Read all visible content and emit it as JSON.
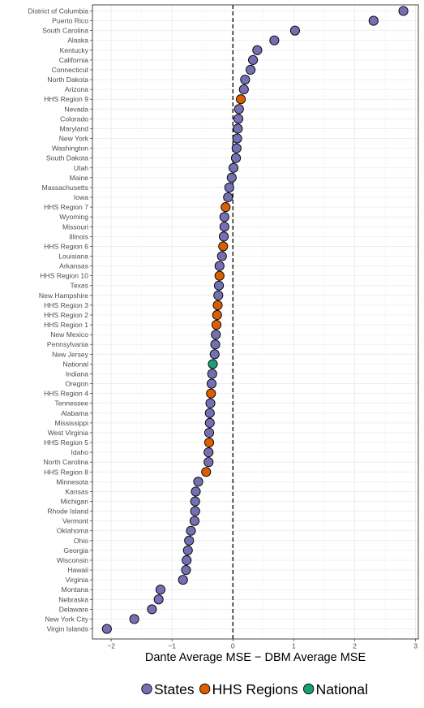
{
  "chart_data": {
    "type": "scatter",
    "title": "",
    "xlabel": "Dante Average MSE − DBM Average MSE",
    "ylabel": "",
    "xlim": [
      -2.2,
      3.05
    ],
    "xticks": [
      -2,
      -1,
      0,
      1,
      2,
      3
    ],
    "xtick_labels": [
      "−2",
      "−1",
      "0",
      "1",
      "2",
      "3"
    ],
    "reference_line": {
      "x": 0,
      "style": "dashed"
    },
    "grid": true,
    "legend_position": "bottom",
    "groups": [
      {
        "name": "States",
        "color": "#7570b3"
      },
      {
        "name": "HHS Regions",
        "color": "#d95f02"
      },
      {
        "name": "National",
        "color": "#1b9e77"
      }
    ],
    "points": [
      {
        "label": "District of Columbia",
        "value": 2.8,
        "group": "States"
      },
      {
        "label": "Puerto Rico",
        "value": 2.31,
        "group": "States"
      },
      {
        "label": "South Carolina",
        "value": 1.02,
        "group": "States"
      },
      {
        "label": "Alaska",
        "value": 0.68,
        "group": "States"
      },
      {
        "label": "Kentucky",
        "value": 0.4,
        "group": "States"
      },
      {
        "label": "California",
        "value": 0.33,
        "group": "States"
      },
      {
        "label": "Connecticut",
        "value": 0.29,
        "group": "States"
      },
      {
        "label": "North Dakota",
        "value": 0.2,
        "group": "States"
      },
      {
        "label": "Arizona",
        "value": 0.18,
        "group": "States"
      },
      {
        "label": "HHS Region 9",
        "value": 0.13,
        "group": "HHS Regions"
      },
      {
        "label": "Nevada",
        "value": 0.1,
        "group": "States"
      },
      {
        "label": "Colorado",
        "value": 0.09,
        "group": "States"
      },
      {
        "label": "Maryland",
        "value": 0.08,
        "group": "States"
      },
      {
        "label": "New York",
        "value": 0.07,
        "group": "States"
      },
      {
        "label": "Washington",
        "value": 0.06,
        "group": "States"
      },
      {
        "label": "South Dakota",
        "value": 0.05,
        "group": "States"
      },
      {
        "label": "Utah",
        "value": 0.01,
        "group": "States"
      },
      {
        "label": "Maine",
        "value": -0.02,
        "group": "States"
      },
      {
        "label": "Massachusetts",
        "value": -0.06,
        "group": "States"
      },
      {
        "label": "Iowa",
        "value": -0.08,
        "group": "States"
      },
      {
        "label": "HHS Region 7",
        "value": -0.12,
        "group": "HHS Regions"
      },
      {
        "label": "Wyoming",
        "value": -0.14,
        "group": "States"
      },
      {
        "label": "Missouri",
        "value": -0.14,
        "group": "States"
      },
      {
        "label": "Illinois",
        "value": -0.15,
        "group": "States"
      },
      {
        "label": "HHS Region 6",
        "value": -0.16,
        "group": "HHS Regions"
      },
      {
        "label": "Louisiana",
        "value": -0.18,
        "group": "States"
      },
      {
        "label": "Arkansas",
        "value": -0.22,
        "group": "States"
      },
      {
        "label": "HHS Region 10",
        "value": -0.22,
        "group": "HHS Regions"
      },
      {
        "label": "Texas",
        "value": -0.23,
        "group": "States"
      },
      {
        "label": "New Hampshire",
        "value": -0.24,
        "group": "States"
      },
      {
        "label": "HHS Region 3",
        "value": -0.25,
        "group": "HHS Regions"
      },
      {
        "label": "HHS Region 2",
        "value": -0.26,
        "group": "HHS Regions"
      },
      {
        "label": "HHS Region 1",
        "value": -0.27,
        "group": "HHS Regions"
      },
      {
        "label": "New Mexico",
        "value": -0.28,
        "group": "States"
      },
      {
        "label": "Pennsylvania",
        "value": -0.29,
        "group": "States"
      },
      {
        "label": "New Jersey",
        "value": -0.3,
        "group": "States"
      },
      {
        "label": "National",
        "value": -0.33,
        "group": "National"
      },
      {
        "label": "Indiana",
        "value": -0.34,
        "group": "States"
      },
      {
        "label": "Oregon",
        "value": -0.35,
        "group": "States"
      },
      {
        "label": "HHS Region 4",
        "value": -0.36,
        "group": "HHS Regions"
      },
      {
        "label": "Tennessee",
        "value": -0.37,
        "group": "States"
      },
      {
        "label": "Alabama",
        "value": -0.38,
        "group": "States"
      },
      {
        "label": "Mississippi",
        "value": -0.38,
        "group": "States"
      },
      {
        "label": "West Virginia",
        "value": -0.39,
        "group": "States"
      },
      {
        "label": "HHS Region 5",
        "value": -0.39,
        "group": "HHS Regions"
      },
      {
        "label": "Idaho",
        "value": -0.4,
        "group": "States"
      },
      {
        "label": "North Carolina",
        "value": -0.4,
        "group": "States"
      },
      {
        "label": "HHS Region 8",
        "value": -0.44,
        "group": "HHS Regions"
      },
      {
        "label": "Minnesota",
        "value": -0.57,
        "group": "States"
      },
      {
        "label": "Kansas",
        "value": -0.61,
        "group": "States"
      },
      {
        "label": "Michigan",
        "value": -0.62,
        "group": "States"
      },
      {
        "label": "Rhode Island",
        "value": -0.62,
        "group": "States"
      },
      {
        "label": "Vermont",
        "value": -0.63,
        "group": "States"
      },
      {
        "label": "Oklahoma",
        "value": -0.69,
        "group": "States"
      },
      {
        "label": "Ohio",
        "value": -0.72,
        "group": "States"
      },
      {
        "label": "Georgia",
        "value": -0.74,
        "group": "States"
      },
      {
        "label": "Wisconsin",
        "value": -0.76,
        "group": "States"
      },
      {
        "label": "Hawaii",
        "value": -0.77,
        "group": "States"
      },
      {
        "label": "Virginia",
        "value": -0.82,
        "group": "States"
      },
      {
        "label": "Montana",
        "value": -1.19,
        "group": "States"
      },
      {
        "label": "Nebraska",
        "value": -1.22,
        "group": "States"
      },
      {
        "label": "Delaware",
        "value": -1.33,
        "group": "States"
      },
      {
        "label": "New York City",
        "value": -1.62,
        "group": "States"
      },
      {
        "label": "Virgin Islands",
        "value": -2.07,
        "group": "States"
      }
    ]
  }
}
